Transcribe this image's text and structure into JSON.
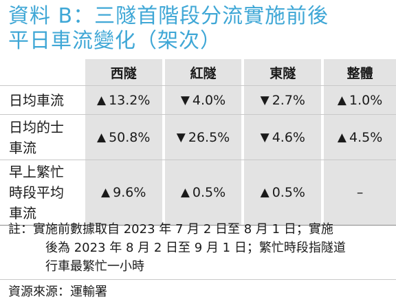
{
  "title_line1": "資料 B：三隧首階段分流實施前後",
  "title_line2": "平日車流變化（架次）",
  "columns": [
    "西隧",
    "紅隧",
    "東隧",
    "整體"
  ],
  "rows": [
    {
      "label": "日均車流",
      "cells": [
        {
          "arrow": "▲",
          "value": "13.2%"
        },
        {
          "arrow": "▼",
          "value": "4.0%"
        },
        {
          "arrow": "▼",
          "value": "2.7%"
        },
        {
          "arrow": "▲",
          "value": "1.0%"
        }
      ]
    },
    {
      "label": "日均的士\n車流",
      "cells": [
        {
          "arrow": "▲",
          "value": "50.8%"
        },
        {
          "arrow": "▼",
          "value": "26.5%"
        },
        {
          "arrow": "▼",
          "value": "4.6%"
        },
        {
          "arrow": "▲",
          "value": "4.5%"
        }
      ]
    },
    {
      "label": "早上繁忙\n時段平均\n車流",
      "cells": [
        {
          "arrow": "▲",
          "value": "9.6%"
        },
        {
          "arrow": "▲",
          "value": "0.5%"
        },
        {
          "arrow": "▲",
          "value": "0.5%"
        },
        {
          "arrow": "",
          "value": "–"
        }
      ]
    }
  ],
  "note_prefix": "註：",
  "note_line1": "實施前數據取自 2023 年 7 月 2 日至 8 月 1 日；實施",
  "note_line2": "後為 2023 年 8 月 2 日至 9 月 1 日；繁忙時段指隧道",
  "note_line3": "行車最繁忙一小時",
  "source": "資源來源：運輸署",
  "colors": {
    "title": "#3fa7d6",
    "shade": "#e3e3e3"
  }
}
